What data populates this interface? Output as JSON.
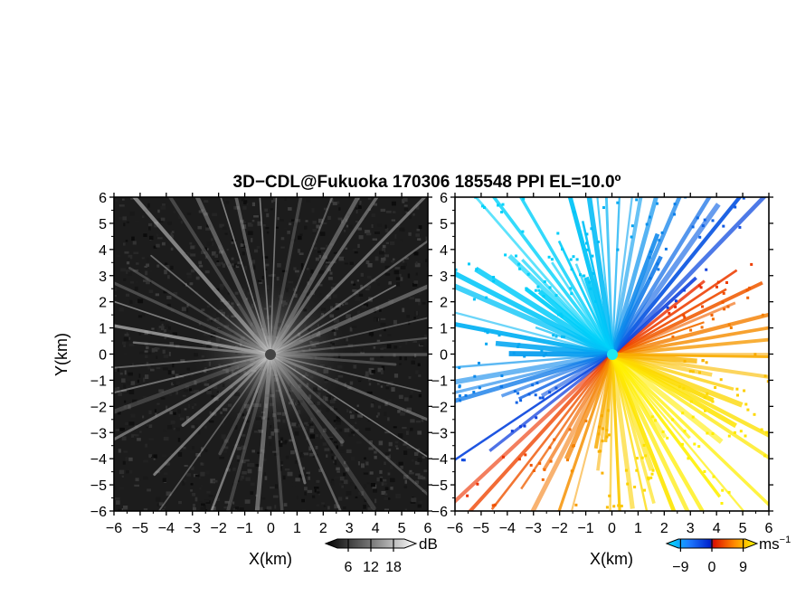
{
  "chart_data": {
    "title": "3D−CDL@Fukuoka 170306 185548 PPI EL=10.0º",
    "panels": [
      {
        "type": "heatmap",
        "variable": "reflectivity-like intensity (grayscale)",
        "xlabel": "X(km)",
        "ylabel": "Y(km)",
        "xlim": [
          -6,
          6
        ],
        "ylim": [
          -6,
          6
        ],
        "xticks": [
          -6,
          -5,
          -4,
          -3,
          -2,
          -1,
          0,
          1,
          2,
          3,
          4,
          5,
          6
        ],
        "yticks": [
          -6,
          -5,
          -4,
          -3,
          -2,
          -1,
          0,
          1,
          2,
          3,
          4,
          5,
          6
        ],
        "colorbar": {
          "unit": "dB",
          "ticks": [
            6,
            12,
            18
          ],
          "range": [
            0,
            24
          ],
          "colormap": "grayscale"
        }
      },
      {
        "type": "heatmap",
        "variable": "radial velocity",
        "xlabel": "X(km)",
        "ylabel": "",
        "xlim": [
          -6,
          6
        ],
        "ylim": [
          -6,
          6
        ],
        "xticks": [
          -6,
          -5,
          -4,
          -3,
          -2,
          -1,
          0,
          1,
          2,
          3,
          4,
          5,
          6
        ],
        "yticks": [
          -6,
          -5,
          -4,
          -3,
          -2,
          -1,
          0,
          1,
          2,
          3,
          4,
          5,
          6
        ],
        "colorbar": {
          "unit": "ms",
          "unit_exponent": "−1",
          "ticks": [
            -9,
            0,
            9
          ],
          "range": [
            -13,
            13
          ],
          "colormap": "cyan-blue-red-orange-yellow"
        }
      }
    ],
    "tick_minus": "−"
  }
}
